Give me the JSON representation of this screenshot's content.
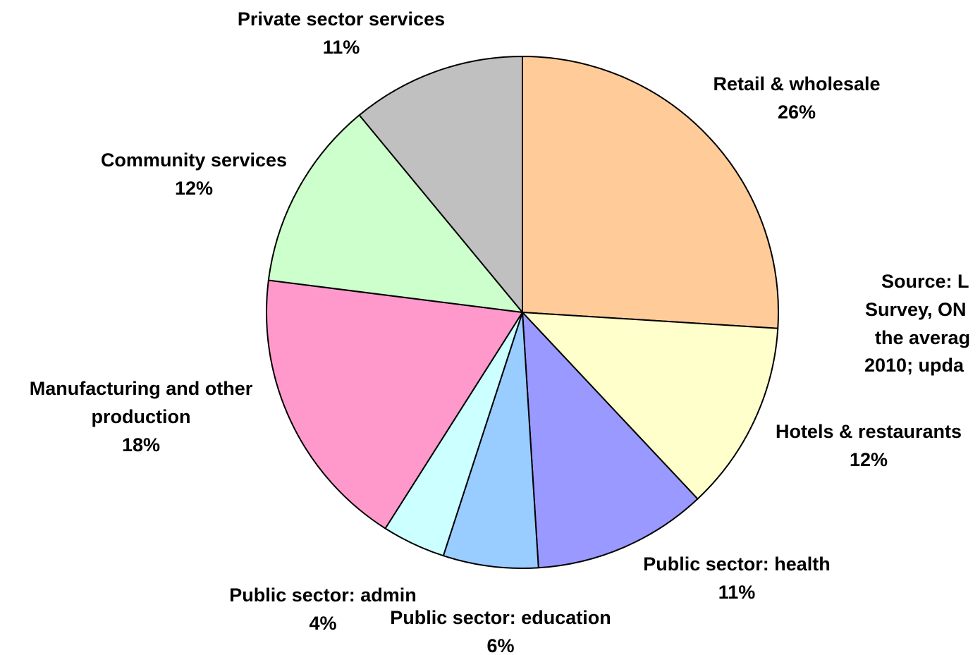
{
  "chart_data": {
    "type": "pie",
    "start": "12 o'clock",
    "direction": "clockwise",
    "slices": [
      {
        "label": "Retail & wholesale",
        "percent_label": "26%",
        "value": 26,
        "color": "#FFCC99"
      },
      {
        "label": "Hotels & restaurants",
        "percent_label": "12%",
        "value": 12,
        "color": "#FFFFCC"
      },
      {
        "label": "Public sector: health",
        "percent_label": "11%",
        "value": 11,
        "color": "#9999FF"
      },
      {
        "label": "Public sector: education",
        "percent_label": "6%",
        "value": 6,
        "color": "#99CCFF"
      },
      {
        "label": "Public sector: admin",
        "percent_label": "4%",
        "value": 4,
        "color": "#CCFFFF"
      },
      {
        "label": "Manufacturing and other production",
        "label_lines": [
          "Manufacturing and other",
          "production"
        ],
        "percent_label": "18%",
        "value": 18,
        "color": "#FF99CC"
      },
      {
        "label": "Community services",
        "percent_label": "12%",
        "value": 12,
        "color": "#CCFFCC"
      },
      {
        "label": "Private sector services",
        "percent_label": "11%",
        "value": 11,
        "color": "#C0C0C0"
      }
    ],
    "source_note_lines": [
      "Source: L",
      "Survey, ON",
      "the averag",
      "2010; upda"
    ]
  }
}
